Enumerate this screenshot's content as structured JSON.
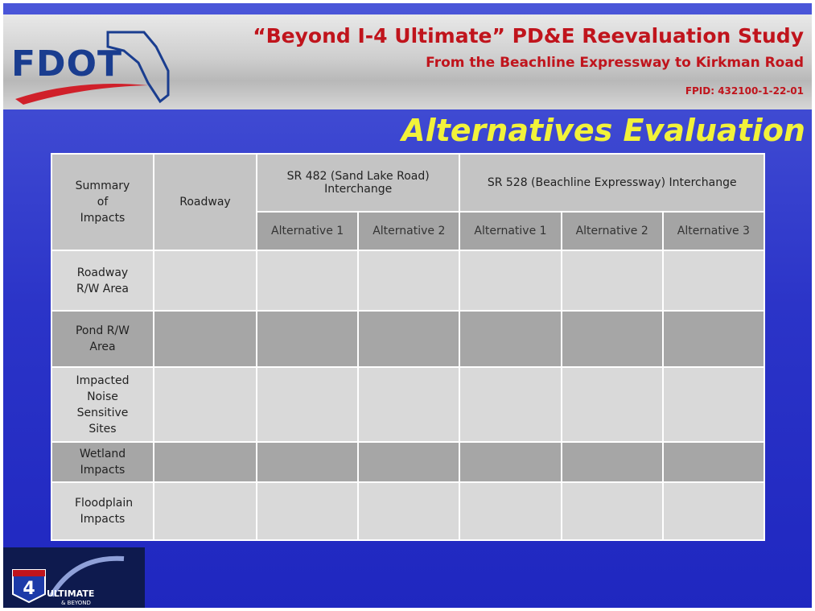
{
  "header": {
    "logo": "FDOT",
    "title": "“Beyond I-4 Ultimate” PD&E Reevaluation Study",
    "subtitle": "From the Beachline Expressway to Kirkman Road",
    "fpid": "FPID: 432100-1-22-01"
  },
  "slide_title": "Alternatives Evaluation",
  "table": {
    "corner": "Summary of Impacts",
    "roadway": "Roadway",
    "groups": [
      {
        "label": "SR 482 (Sand Lake Road) Interchange",
        "columns": [
          "Alternative 1",
          "Alternative 2"
        ]
      },
      {
        "label": "SR 528 (Beachline Expressway) Interchange",
        "columns": [
          "Alternative 1",
          "Alternative 2",
          "Alternative 3"
        ]
      }
    ],
    "rows": [
      "Roadway R/W Area",
      "Pond R/W Area",
      "Impacted Noise Sensitive Sites",
      "Wetland Impacts",
      "Floodplain Impacts"
    ]
  },
  "footer_logo": {
    "number": "4",
    "name": "ULTIMATE",
    "tagline": "& BEYOND"
  }
}
